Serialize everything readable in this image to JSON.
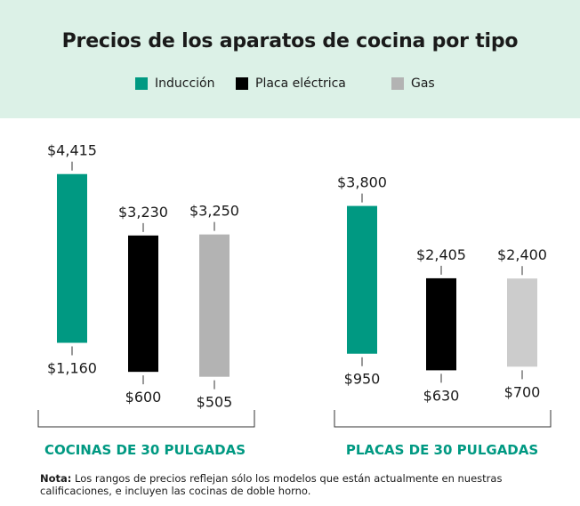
{
  "title": "Precios de los aparatos de cocina por tipo",
  "legend": [
    {
      "label": "Inducción",
      "color": "#009982"
    },
    {
      "label": "Placa eléctrica",
      "color": "#000000"
    },
    {
      "label": "Gas",
      "color": "#b3b3b3"
    }
  ],
  "note": {
    "label": "Nota:",
    "text": "Los rangos de precios reflejan sólo los modelos que están actualmente en nuestras calificaciones, e incluyen las cocinas de doble horno."
  },
  "chart_data": [
    {
      "type": "range-bar",
      "group_label": "COCINAS DE 30 PULGADAS",
      "series": [
        {
          "name": "Inducción",
          "min": 1160,
          "max": 4415,
          "min_label": "$1,160",
          "max_label": "$4,415",
          "color": "#009982"
        },
        {
          "name": "Placa eléctrica",
          "min": 600,
          "max": 3230,
          "min_label": "$600",
          "max_label": "$3,230",
          "color": "#000000"
        },
        {
          "name": "Gas",
          "min": 505,
          "max": 3250,
          "min_label": "$505",
          "max_label": "$3,250",
          "color": "#b3b3b3"
        }
      ]
    },
    {
      "type": "range-bar",
      "group_label": "PLACAS DE 30 PULGADAS",
      "series": [
        {
          "name": "Inducción",
          "min": 950,
          "max": 3800,
          "min_label": "$950",
          "max_label": "$3,800",
          "color": "#009982"
        },
        {
          "name": "Placa eléctrica",
          "min": 630,
          "max": 2405,
          "min_label": "$630",
          "max_label": "$2,405",
          "color": "#000000"
        },
        {
          "name": "Gas",
          "min": 700,
          "max": 2400,
          "min_label": "$700",
          "max_label": "$2,400",
          "color": "#cccccc"
        }
      ]
    }
  ]
}
